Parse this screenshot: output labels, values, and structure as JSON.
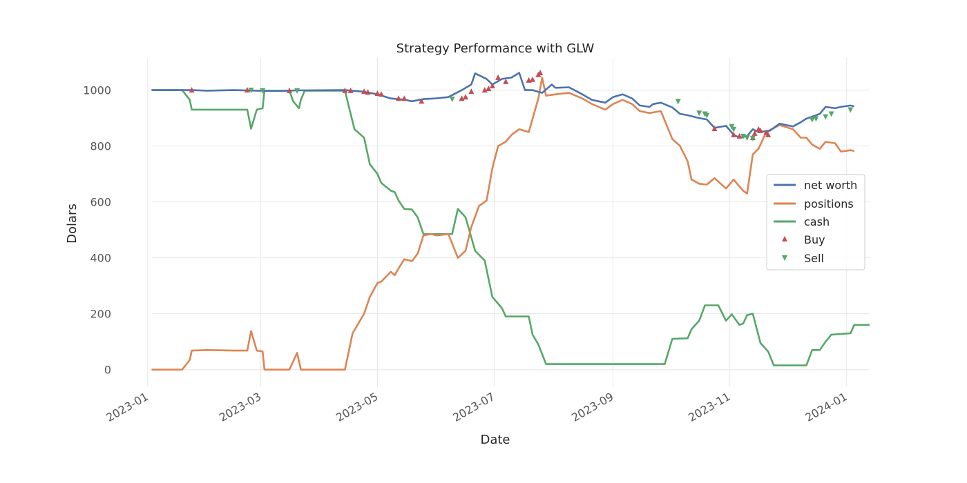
{
  "chart_data": {
    "type": "line",
    "title": "Strategy Performance with GLW",
    "xlabel": "Date",
    "ylabel": "Dolars",
    "x_axis": {
      "kind": "date",
      "range": [
        "2022-12-18",
        "2024-01-13"
      ],
      "ticks": [
        "2023-01",
        "2023-03",
        "2023-05",
        "2023-07",
        "2023-09",
        "2023-11",
        "2024-01"
      ]
    },
    "y_axis": {
      "range": [
        -60,
        1115
      ],
      "ticks": [
        0,
        200,
        400,
        600,
        800,
        1000
      ]
    },
    "grid": true,
    "legend_position": "center-right",
    "series": [
      {
        "name": "net worth",
        "color": "#4c72b0",
        "points": [
          [
            "2023-01-03",
            1000
          ],
          [
            "2023-01-24",
            1000
          ],
          [
            "2023-02-01",
            998
          ],
          [
            "2023-02-15",
            1000
          ],
          [
            "2023-02-27",
            998
          ],
          [
            "2023-03-10",
            997
          ],
          [
            "2023-03-20",
            999
          ],
          [
            "2023-04-14",
            1000
          ],
          [
            "2023-04-24",
            994
          ],
          [
            "2023-05-01",
            985
          ],
          [
            "2023-05-08",
            970
          ],
          [
            "2023-05-15",
            966
          ],
          [
            "2023-05-19",
            960
          ],
          [
            "2023-05-25",
            968
          ],
          [
            "2023-05-31",
            970
          ],
          [
            "2023-06-07",
            975
          ],
          [
            "2023-06-14",
            1000
          ],
          [
            "2023-06-19",
            1020
          ],
          [
            "2023-06-21",
            1060
          ],
          [
            "2023-06-27",
            1040
          ],
          [
            "2023-06-30",
            1020
          ],
          [
            "2023-07-05",
            1040
          ],
          [
            "2023-07-10",
            1045
          ],
          [
            "2023-07-14",
            1062
          ],
          [
            "2023-07-17",
            1000
          ],
          [
            "2023-07-21",
            1000
          ],
          [
            "2023-07-26",
            990
          ],
          [
            "2023-07-31",
            1020
          ],
          [
            "2023-08-02",
            1008
          ],
          [
            "2023-08-09",
            1010
          ],
          [
            "2023-08-16",
            985
          ],
          [
            "2023-08-21",
            965
          ],
          [
            "2023-08-28",
            955
          ],
          [
            "2023-09-01",
            975
          ],
          [
            "2023-09-06",
            985
          ],
          [
            "2023-09-11",
            970
          ],
          [
            "2023-09-15",
            945
          ],
          [
            "2023-09-20",
            940
          ],
          [
            "2023-09-22",
            950
          ],
          [
            "2023-09-26",
            955
          ],
          [
            "2023-10-02",
            938
          ],
          [
            "2023-10-06",
            915
          ],
          [
            "2023-10-10",
            910
          ],
          [
            "2023-10-16",
            900
          ],
          [
            "2023-10-20",
            895
          ],
          [
            "2023-10-24",
            865
          ],
          [
            "2023-10-30",
            872
          ],
          [
            "2023-11-03",
            840
          ],
          [
            "2023-11-06",
            830
          ],
          [
            "2023-11-10",
            835
          ],
          [
            "2023-11-13",
            860
          ],
          [
            "2023-11-16",
            850
          ],
          [
            "2023-11-22",
            855
          ],
          [
            "2023-11-27",
            880
          ],
          [
            "2023-12-04",
            870
          ],
          [
            "2023-12-08",
            885
          ],
          [
            "2023-12-11",
            898
          ],
          [
            "2023-12-14",
            905
          ],
          [
            "2023-12-18",
            915
          ],
          [
            "2023-12-21",
            940
          ],
          [
            "2023-12-26",
            935
          ],
          [
            "2023-12-29",
            940
          ],
          [
            "2024-01-03",
            945
          ],
          [
            "2024-01-05",
            942
          ]
        ]
      },
      {
        "name": "positions",
        "color": "#dd8452",
        "points": [
          [
            "2023-01-03",
            0
          ],
          [
            "2023-01-19",
            0
          ],
          [
            "2023-01-23",
            35
          ],
          [
            "2023-01-24",
            68
          ],
          [
            "2023-02-01",
            70
          ],
          [
            "2023-02-15",
            68
          ],
          [
            "2023-02-22",
            68
          ],
          [
            "2023-02-24",
            138
          ],
          [
            "2023-02-27",
            68
          ],
          [
            "2023-03-02",
            65
          ],
          [
            "2023-03-03",
            0
          ],
          [
            "2023-03-16",
            0
          ],
          [
            "2023-03-20",
            60
          ],
          [
            "2023-03-22",
            0
          ],
          [
            "2023-04-14",
            0
          ],
          [
            "2023-04-18",
            130
          ],
          [
            "2023-04-21",
            165
          ],
          [
            "2023-04-24",
            200
          ],
          [
            "2023-04-27",
            260
          ],
          [
            "2023-05-01",
            310
          ],
          [
            "2023-05-03",
            315
          ],
          [
            "2023-05-08",
            350
          ],
          [
            "2023-05-10",
            338
          ],
          [
            "2023-05-12",
            362
          ],
          [
            "2023-05-15",
            395
          ],
          [
            "2023-05-19",
            388
          ],
          [
            "2023-05-22",
            415
          ],
          [
            "2023-05-25",
            480
          ],
          [
            "2023-05-29",
            485
          ],
          [
            "2023-06-01",
            480
          ],
          [
            "2023-06-07",
            485
          ],
          [
            "2023-06-12",
            400
          ],
          [
            "2023-06-16",
            425
          ],
          [
            "2023-06-19",
            510
          ],
          [
            "2023-06-23",
            585
          ],
          [
            "2023-06-27",
            605
          ],
          [
            "2023-06-30",
            720
          ],
          [
            "2023-07-03",
            800
          ],
          [
            "2023-07-07",
            815
          ],
          [
            "2023-07-10",
            840
          ],
          [
            "2023-07-14",
            860
          ],
          [
            "2023-07-19",
            850
          ],
          [
            "2023-07-24",
            970
          ],
          [
            "2023-07-26",
            1045
          ],
          [
            "2023-07-28",
            980
          ],
          [
            "2023-08-02",
            985
          ],
          [
            "2023-08-09",
            990
          ],
          [
            "2023-08-16",
            970
          ],
          [
            "2023-08-21",
            950
          ],
          [
            "2023-08-28",
            930
          ],
          [
            "2023-09-01",
            950
          ],
          [
            "2023-09-06",
            965
          ],
          [
            "2023-09-11",
            950
          ],
          [
            "2023-09-15",
            925
          ],
          [
            "2023-09-20",
            918
          ],
          [
            "2023-09-26",
            925
          ],
          [
            "2023-10-02",
            825
          ],
          [
            "2023-10-06",
            800
          ],
          [
            "2023-10-10",
            745
          ],
          [
            "2023-10-12",
            680
          ],
          [
            "2023-10-16",
            665
          ],
          [
            "2023-10-20",
            662
          ],
          [
            "2023-10-24",
            685
          ],
          [
            "2023-10-30",
            648
          ],
          [
            "2023-11-03",
            680
          ],
          [
            "2023-11-06",
            655
          ],
          [
            "2023-11-08",
            640
          ],
          [
            "2023-11-10",
            630
          ],
          [
            "2023-11-13",
            770
          ],
          [
            "2023-11-16",
            790
          ],
          [
            "2023-11-20",
            850
          ],
          [
            "2023-11-27",
            875
          ],
          [
            "2023-12-04",
            860
          ],
          [
            "2023-12-08",
            830
          ],
          [
            "2023-12-11",
            830
          ],
          [
            "2023-12-14",
            805
          ],
          [
            "2023-12-18",
            790
          ],
          [
            "2023-12-21",
            815
          ],
          [
            "2023-12-26",
            810
          ],
          [
            "2023-12-29",
            780
          ],
          [
            "2024-01-03",
            785
          ],
          [
            "2024-01-05",
            782
          ]
        ]
      },
      {
        "name": "cash",
        "color": "#55a868",
        "points": [
          [
            "2023-01-03",
            1000
          ],
          [
            "2023-01-19",
            1000
          ],
          [
            "2023-01-23",
            965
          ],
          [
            "2023-01-24",
            930
          ],
          [
            "2023-02-22",
            930
          ],
          [
            "2023-02-24",
            862
          ],
          [
            "2023-02-27",
            930
          ],
          [
            "2023-03-02",
            935
          ],
          [
            "2023-03-03",
            998
          ],
          [
            "2023-03-16",
            998
          ],
          [
            "2023-03-18",
            960
          ],
          [
            "2023-03-21",
            935
          ],
          [
            "2023-03-22",
            965
          ],
          [
            "2023-03-24",
            998
          ],
          [
            "2023-04-14",
            998
          ],
          [
            "2023-04-19",
            860
          ],
          [
            "2023-04-24",
            830
          ],
          [
            "2023-04-27",
            735
          ],
          [
            "2023-05-01",
            700
          ],
          [
            "2023-05-03",
            668
          ],
          [
            "2023-05-08",
            640
          ],
          [
            "2023-05-10",
            635
          ],
          [
            "2023-05-12",
            605
          ],
          [
            "2023-05-15",
            575
          ],
          [
            "2023-05-19",
            573
          ],
          [
            "2023-05-22",
            545
          ],
          [
            "2023-05-25",
            485
          ],
          [
            "2023-06-09",
            485
          ],
          [
            "2023-06-12",
            575
          ],
          [
            "2023-06-16",
            545
          ],
          [
            "2023-06-21",
            425
          ],
          [
            "2023-06-26",
            390
          ],
          [
            "2023-06-30",
            260
          ],
          [
            "2023-07-05",
            220
          ],
          [
            "2023-07-07",
            190
          ],
          [
            "2023-07-19",
            190
          ],
          [
            "2023-07-21",
            125
          ],
          [
            "2023-07-24",
            90
          ],
          [
            "2023-07-28",
            20
          ],
          [
            "2023-09-28",
            20
          ],
          [
            "2023-10-02",
            110
          ],
          [
            "2023-10-10",
            112
          ],
          [
            "2023-10-12",
            145
          ],
          [
            "2023-10-16",
            175
          ],
          [
            "2023-10-19",
            230
          ],
          [
            "2023-10-26",
            230
          ],
          [
            "2023-10-30",
            175
          ],
          [
            "2023-11-02",
            198
          ],
          [
            "2023-11-06",
            160
          ],
          [
            "2023-11-08",
            165
          ],
          [
            "2023-11-10",
            195
          ],
          [
            "2023-11-13",
            200
          ],
          [
            "2023-11-17",
            95
          ],
          [
            "2023-11-21",
            65
          ],
          [
            "2023-11-24",
            15
          ],
          [
            "2023-12-11",
            15
          ],
          [
            "2023-12-14",
            70
          ],
          [
            "2023-12-18",
            70
          ],
          [
            "2023-12-21",
            100
          ],
          [
            "2023-12-24",
            125
          ],
          [
            "2024-01-03",
            130
          ],
          [
            "2024-01-05",
            160
          ],
          [
            "2024-01-13",
            160
          ]
        ]
      }
    ],
    "markers": {
      "buy": {
        "name": "Buy",
        "color": "#c44e52",
        "symbol": "triangle-up",
        "points": [
          [
            "2023-01-24",
            1000
          ],
          [
            "2023-02-22",
            1000
          ],
          [
            "2023-03-16",
            998
          ],
          [
            "2023-04-14",
            998
          ],
          [
            "2023-04-17",
            998
          ],
          [
            "2023-04-24",
            995
          ],
          [
            "2023-04-26",
            992
          ],
          [
            "2023-05-01",
            988
          ],
          [
            "2023-05-03",
            985
          ],
          [
            "2023-05-12",
            970
          ],
          [
            "2023-05-15",
            970
          ],
          [
            "2023-05-24",
            960
          ],
          [
            "2023-06-14",
            970
          ],
          [
            "2023-06-16",
            975
          ],
          [
            "2023-06-19",
            995
          ],
          [
            "2023-06-26",
            1000
          ],
          [
            "2023-06-28",
            1005
          ],
          [
            "2023-06-30",
            1015
          ],
          [
            "2023-07-03",
            1045
          ],
          [
            "2023-07-07",
            1030
          ],
          [
            "2023-07-19",
            1035
          ],
          [
            "2023-07-21",
            1038
          ],
          [
            "2023-07-24",
            1055
          ],
          [
            "2023-07-25",
            1062
          ],
          [
            "2023-10-24",
            862
          ],
          [
            "2023-11-03",
            840
          ],
          [
            "2023-11-06",
            835
          ],
          [
            "2023-11-13",
            830
          ],
          [
            "2023-11-14",
            845
          ],
          [
            "2023-11-16",
            860
          ],
          [
            "2023-11-17",
            855
          ],
          [
            "2023-11-20",
            848
          ],
          [
            "2023-11-21",
            840
          ]
        ]
      },
      "sell": {
        "name": "Sell",
        "color": "#55a868",
        "symbol": "triangle-down",
        "points": [
          [
            "2023-02-24",
            1000
          ],
          [
            "2023-03-02",
            998
          ],
          [
            "2023-03-20",
            998
          ],
          [
            "2023-06-09",
            968
          ],
          [
            "2023-10-05",
            960
          ],
          [
            "2023-10-16",
            918
          ],
          [
            "2023-10-19",
            915
          ],
          [
            "2023-10-20",
            910
          ],
          [
            "2023-11-02",
            870
          ],
          [
            "2023-11-03",
            860
          ],
          [
            "2023-11-08",
            835
          ],
          [
            "2023-11-10",
            830
          ],
          [
            "2023-11-13",
            828
          ],
          [
            "2023-12-14",
            895
          ],
          [
            "2023-12-16",
            898
          ],
          [
            "2023-12-21",
            905
          ],
          [
            "2023-12-24",
            915
          ],
          [
            "2024-01-03",
            930
          ]
        ]
      }
    }
  }
}
